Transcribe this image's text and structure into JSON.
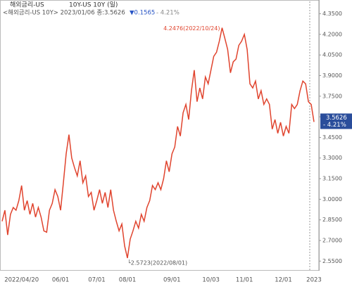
{
  "chart_data": {
    "type": "line",
    "title": "해외금리-US",
    "subtitle": "10Y-US 10Y (일)",
    "info": [
      "<해외금리-US 10Y> 2023/01/06 종:3.5626",
      "▼0.1565",
      "- 4.21%"
    ],
    "color": "#e0442e",
    "categories": [
      null,
      null,
      null,
      null,
      null,
      null,
      null,
      "2022/04/20",
      null,
      null,
      null,
      null,
      null,
      null,
      null,
      null,
      null,
      null,
      null,
      null,
      null,
      "06/01",
      null,
      null,
      null,
      null,
      null,
      null,
      null,
      null,
      null,
      null,
      null,
      null,
      "07/01",
      null,
      null,
      null,
      null,
      null,
      null,
      null,
      null,
      null,
      null,
      "08/01",
      null,
      null,
      null,
      null,
      null,
      null,
      null,
      null,
      null,
      null,
      null,
      null,
      null,
      null,
      null,
      "09/01",
      null,
      null,
      null,
      null,
      null,
      null,
      null,
      null,
      null,
      null,
      null,
      null,
      null,
      "10/03",
      null,
      null,
      null,
      null,
      null,
      null,
      null,
      null,
      null,
      null,
      null,
      "11/01",
      null,
      null,
      null,
      null,
      null,
      null,
      null,
      null,
      null,
      null,
      null,
      null,
      null,
      "12/01",
      null,
      null,
      null,
      null,
      null,
      null,
      null,
      null,
      null,
      null,
      "2023"
    ],
    "values": [
      2.84,
      2.92,
      2.74,
      2.89,
      2.94,
      2.92,
      2.99,
      3.1,
      2.92,
      2.99,
      2.89,
      2.97,
      2.87,
      2.94,
      2.87,
      2.77,
      2.76,
      2.92,
      2.97,
      3.07,
      3.02,
      2.92,
      3.12,
      3.33,
      3.47,
      3.3,
      3.23,
      3.17,
      3.28,
      3.12,
      3.17,
      3.02,
      3.05,
      2.92,
      2.99,
      3.07,
      2.97,
      3.05,
      2.94,
      3.07,
      2.92,
      2.84,
      2.77,
      2.82,
      2.66,
      2.5723,
      2.71,
      2.77,
      2.84,
      2.79,
      2.89,
      2.84,
      2.94,
      2.99,
      3.1,
      3.07,
      3.12,
      3.07,
      3.15,
      3.28,
      3.2,
      3.33,
      3.38,
      3.53,
      3.46,
      3.63,
      3.69,
      3.58,
      3.79,
      3.94,
      3.71,
      3.81,
      3.73,
      3.89,
      3.84,
      3.94,
      4.04,
      4.07,
      4.15,
      4.2476,
      4.17,
      4.09,
      3.92,
      4.0,
      4.02,
      4.12,
      4.15,
      4.2,
      4.09,
      3.84,
      3.81,
      3.86,
      3.73,
      3.79,
      3.69,
      3.73,
      3.69,
      3.51,
      3.58,
      3.48,
      3.56,
      3.46,
      3.53,
      3.48,
      3.69,
      3.66,
      3.69,
      3.79,
      3.86,
      3.84,
      3.71,
      3.69,
      3.5626
    ],
    "ylim": [
      2.48,
      4.45
    ],
    "yticks": [
      {
        "value": 4.35,
        "label": "4.3500"
      },
      {
        "value": 4.2,
        "label": "4.2000"
      },
      {
        "value": 4.05,
        "label": "4.0500"
      },
      {
        "value": 3.9,
        "label": "3.9000"
      },
      {
        "value": 3.75,
        "label": "3.7500"
      },
      {
        "value": 3.6,
        "label": "3.6000"
      },
      {
        "value": 3.45,
        "label": "3.4500"
      },
      {
        "value": 3.3,
        "label": "3.3000"
      },
      {
        "value": 3.15,
        "label": "3.1500"
      },
      {
        "value": 3.0,
        "label": "3.0000"
      },
      {
        "value": 2.85,
        "label": "2.8500"
      },
      {
        "value": 2.7,
        "label": "2.7000"
      },
      {
        "value": 2.55,
        "label": "2.5500"
      }
    ],
    "annotations": [
      {
        "value": 4.2476,
        "text": "4.2476(2022/10/24)",
        "side": "left"
      },
      {
        "value": 2.5723,
        "text": "└2.5723(2022/08/01)",
        "side": "right"
      }
    ],
    "last_label": {
      "value": 3.5626,
      "label": "3.5626",
      "change": "- 4.21%"
    }
  }
}
